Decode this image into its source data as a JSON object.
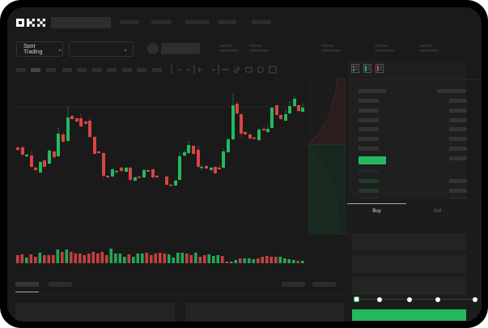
{
  "header": {
    "logo": "OKX"
  },
  "market_bar": {
    "mode_dropdown": "Spot Trading",
    "pair_dropdown": ""
  },
  "order_form": {
    "tabs": [
      {
        "label": "Buy",
        "active": true
      },
      {
        "label": "Sell",
        "active": false
      }
    ],
    "slider_percent": 0
  },
  "colors": {
    "up": "#25b85e",
    "down": "#d84545",
    "background": "#1a1a1a",
    "panel": "#1f1f1f"
  }
}
